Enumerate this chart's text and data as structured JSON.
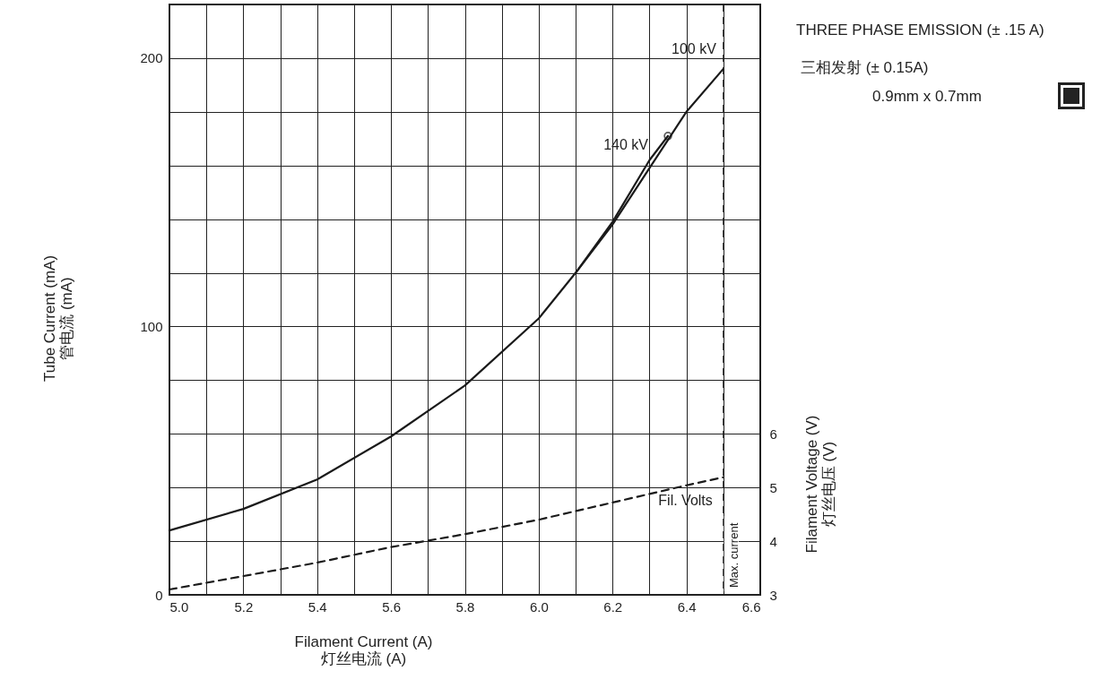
{
  "chart_data": {
    "type": "line",
    "title": "THREE PHASE EMISSION (± .15 A)",
    "subtitle": "三相发射 (± 0.15A)",
    "annotations": [
      "0.9mm x 0.7mm"
    ],
    "xlabel": "Filament Current (A)\n灯丝电流 (A)",
    "ylabel": "Tube Current (mA)\n管电流 (mA)",
    "y2label": "Filament Voltage (V)\n灯丝电压 (V)",
    "xlim": [
      5.0,
      6.6
    ],
    "xticks": [
      {
        "value": 5.0,
        "label": "5.0"
      },
      {
        "value": 5.1,
        "label": null
      },
      {
        "value": 5.2,
        "label": "5.2"
      },
      {
        "value": 5.3,
        "label": null
      },
      {
        "value": 5.4,
        "label": "5.4"
      },
      {
        "value": 5.5,
        "label": null
      },
      {
        "value": 5.6,
        "label": "5.6"
      },
      {
        "value": 5.7,
        "label": null
      },
      {
        "value": 5.8,
        "label": "5.8"
      },
      {
        "value": 5.9,
        "label": null
      },
      {
        "value": 6.0,
        "label": "6.0"
      },
      {
        "value": 6.1,
        "label": null
      },
      {
        "value": 6.2,
        "label": "6.2"
      },
      {
        "value": 6.3,
        "label": null
      },
      {
        "value": 6.4,
        "label": "6.4"
      },
      {
        "value": 6.5,
        "label": null
      },
      {
        "value": 6.6,
        "label": "6.6"
      }
    ],
    "ylim": [
      0,
      220
    ],
    "yticks": [
      0,
      {
        "value": 20,
        "label": null
      },
      {
        "value": 40,
        "label": null
      },
      {
        "value": 60,
        "label": null
      },
      {
        "value": 80,
        "label": null
      },
      100,
      {
        "value": 120,
        "label": null
      },
      {
        "value": 140,
        "label": null
      },
      {
        "value": 160,
        "label": null
      },
      {
        "value": 180,
        "label": null
      },
      200
    ],
    "y2lim": [
      3,
      14
    ],
    "y2ticks": [
      3,
      4,
      5,
      6
    ],
    "grid": true,
    "line_style": "solid",
    "series": [
      {
        "name": "100 kV",
        "color": "#1a1a1a",
        "x": [
          5.0,
          5.2,
          5.4,
          5.6,
          5.8,
          6.0,
          6.1,
          6.2,
          6.3,
          6.4,
          6.5
        ],
        "values": [
          24,
          32,
          43,
          59,
          78,
          103,
          120,
          138,
          159,
          180,
          196
        ]
      },
      {
        "name": "140 kV",
        "color": "#1a1a1a",
        "x": [
          6.1,
          6.2,
          6.3,
          6.35
        ],
        "values": [
          120,
          139,
          162,
          171
        ]
      },
      {
        "type": "scatter",
        "marker": "circle",
        "color": "#1a1a1a",
        "x": [
          6.35
        ],
        "values": [
          171
        ]
      },
      {
        "name": "Fil. Volts",
        "color": "#1a1a1a",
        "axis": "y2",
        "line_style": "dashed",
        "x": [
          5.0,
          5.2,
          5.4,
          5.6,
          5.8,
          6.0,
          6.2,
          6.4,
          6.5
        ],
        "values": [
          3.1,
          3.35,
          3.6,
          3.89,
          4.13,
          4.4,
          4.72,
          5.04,
          5.19
        ]
      }
    ],
    "ref_lines": [
      {
        "axis": "x",
        "value": 6.5,
        "label": "Max. current",
        "line_style": "dashed",
        "color": "#1a1a1a"
      }
    ]
  }
}
